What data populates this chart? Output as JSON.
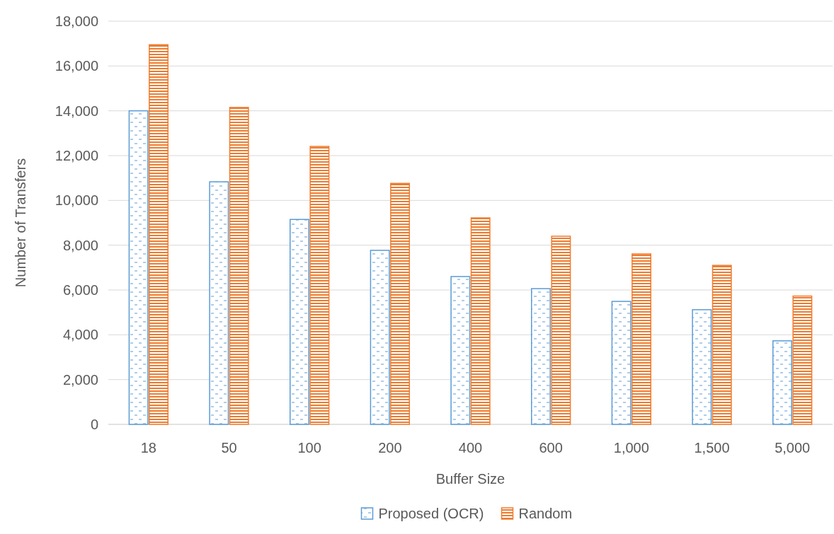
{
  "chart_data": {
    "type": "bar",
    "xlabel": "Buffer Size",
    "ylabel": "Number of Transfers",
    "categories": [
      "18",
      "50",
      "100",
      "200",
      "400",
      "600",
      "1,000",
      "1,500",
      "5,000"
    ],
    "series": [
      {
        "name": "Proposed (OCR)",
        "color": "#5b9bd5",
        "values": [
          14000,
          10830,
          9150,
          7770,
          6600,
          6060,
          5490,
          5120,
          3730
        ]
      },
      {
        "name": "Random",
        "color": "#ed7d31",
        "values": [
          16950,
          14150,
          12410,
          10760,
          9220,
          8400,
          7610,
          7100,
          5730
        ]
      }
    ],
    "ylim": [
      0,
      18000
    ],
    "yticks": [
      {
        "value": 0,
        "label": "0"
      },
      {
        "value": 2000,
        "label": "2,000"
      },
      {
        "value": 4000,
        "label": "4,000"
      },
      {
        "value": 6000,
        "label": "6,000"
      },
      {
        "value": 8000,
        "label": "8,000"
      },
      {
        "value": 10000,
        "label": "10,000"
      },
      {
        "value": 12000,
        "label": "12,000"
      },
      {
        "value": 14000,
        "label": "14,000"
      },
      {
        "value": 16000,
        "label": "16,000"
      },
      {
        "value": 18000,
        "label": "18,000"
      }
    ],
    "grid": "y",
    "legend": "bottom"
  }
}
